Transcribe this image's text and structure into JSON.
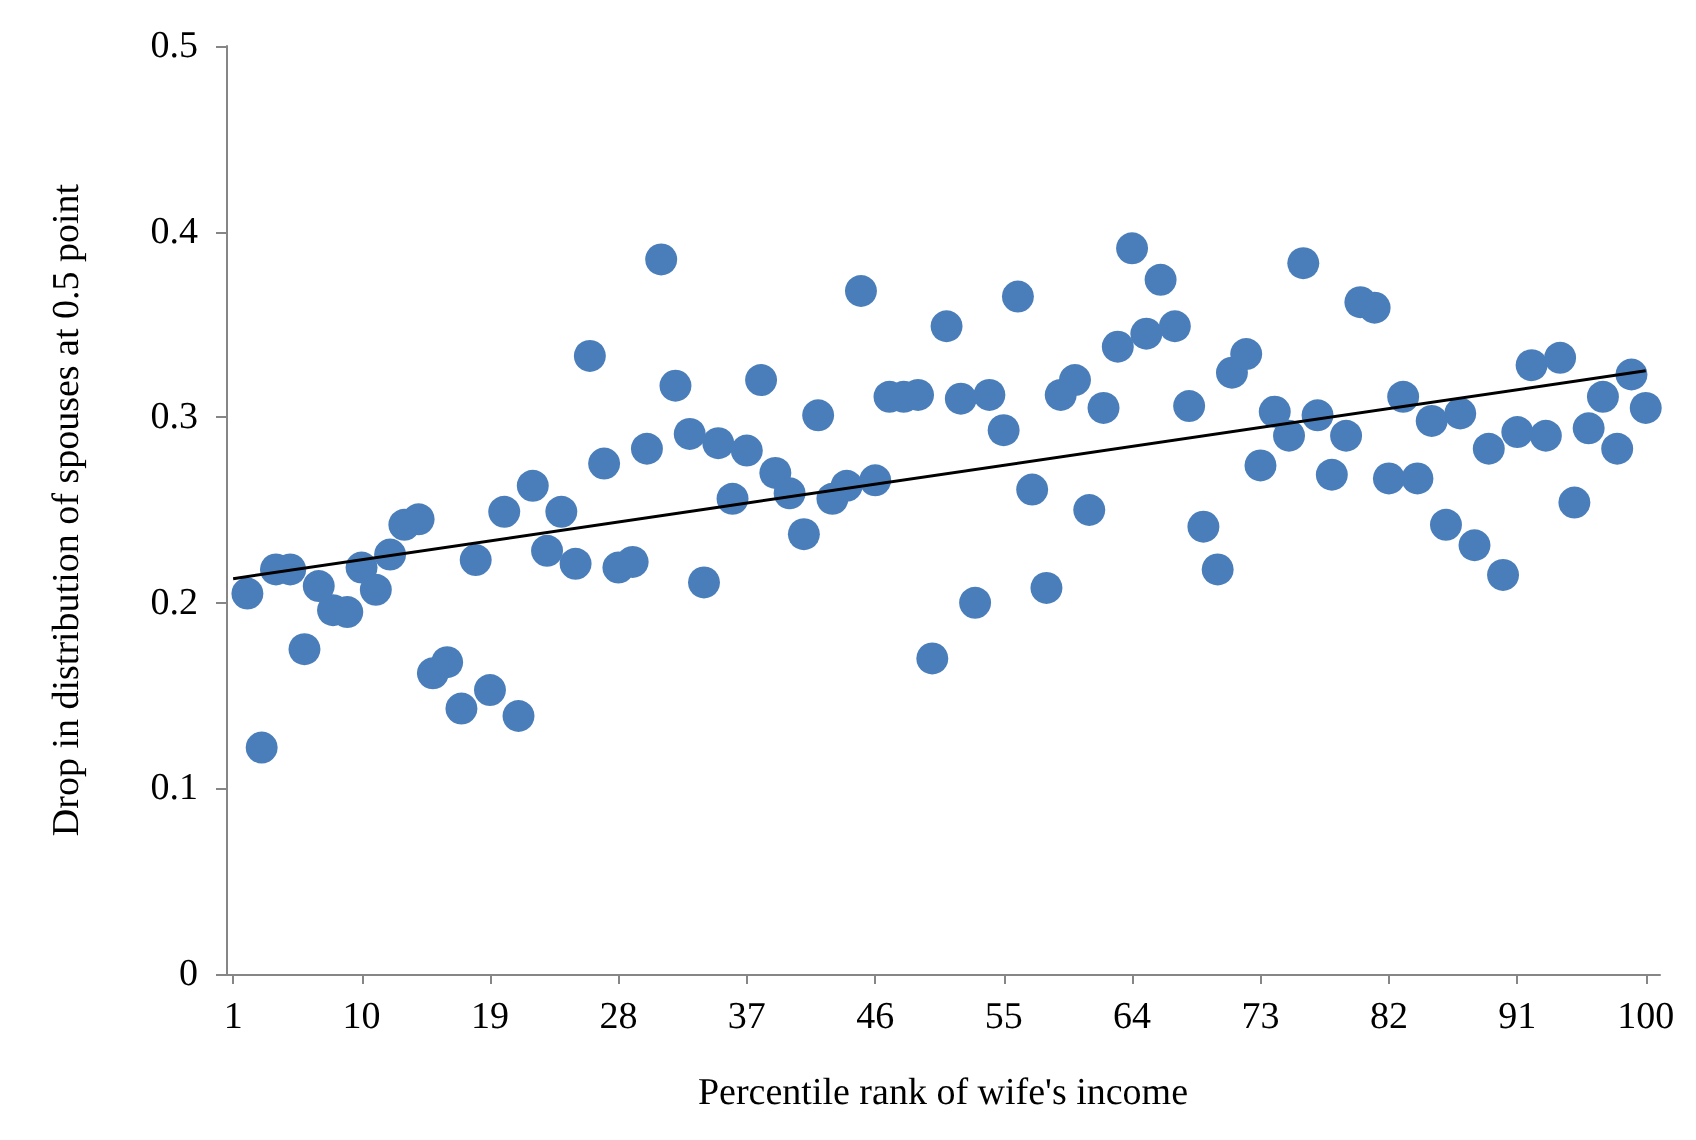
{
  "chart_data": {
    "type": "scatter",
    "xlabel": "Percentile rank of wife's income",
    "ylabel": "Drop in distribution of spouses at 0.5 point",
    "xlim": [
      0.5,
      101
    ],
    "xticks": [
      1,
      10,
      19,
      28,
      37,
      46,
      55,
      64,
      73,
      82,
      91,
      100
    ],
    "ylim": [
      0,
      0.5
    ],
    "yticks": [
      0,
      0.1,
      0.2,
      0.3,
      0.4,
      0.5
    ],
    "marker": "circle",
    "series": [
      {
        "color": "#4a7ebb",
        "x": [
          2,
          3,
          4,
          5,
          6,
          7,
          8,
          9,
          10,
          11,
          12,
          13,
          14,
          15,
          16,
          17,
          18,
          19,
          20,
          21,
          22,
          23,
          24,
          25,
          26,
          27,
          28,
          29,
          30,
          31,
          32,
          33,
          34,
          35,
          36,
          37,
          38,
          39,
          40,
          41,
          42,
          43,
          44,
          45,
          46,
          47,
          48,
          49,
          50,
          51,
          52,
          53,
          54,
          55,
          56,
          57,
          58,
          59,
          60,
          61,
          62,
          63,
          64,
          65,
          66,
          67,
          68,
          69,
          70,
          71,
          72,
          73,
          74,
          75,
          76,
          77,
          78,
          79,
          80,
          81,
          82,
          83,
          84,
          85,
          86,
          87,
          88,
          89,
          90,
          91,
          92,
          93,
          94,
          95,
          96,
          97,
          98,
          99,
          100
        ],
        "values": [
          0.205,
          0.122,
          0.218,
          0.218,
          0.175,
          0.209,
          0.196,
          0.195,
          0.219,
          0.207,
          0.226,
          0.242,
          0.245,
          0.162,
          0.168,
          0.143,
          0.223,
          0.153,
          0.249,
          0.139,
          0.263,
          0.228,
          0.249,
          0.221,
          0.333,
          0.275,
          0.219,
          0.222,
          0.283,
          0.385,
          0.317,
          0.291,
          0.211,
          0.286,
          0.256,
          0.282,
          0.32,
          0.27,
          0.259,
          0.237,
          0.301,
          0.256,
          0.263,
          0.368,
          0.266,
          0.311,
          0.311,
          0.312,
          0.17,
          0.349,
          0.31,
          0.2,
          0.312,
          0.293,
          0.365,
          0.261,
          0.208,
          0.312,
          0.32,
          0.25,
          0.305,
          0.338,
          0.391,
          0.345,
          0.374,
          0.349,
          0.306,
          0.241,
          0.218,
          0.324,
          0.334,
          0.274,
          0.303,
          0.29,
          0.383,
          0.301,
          0.269,
          0.29,
          0.362,
          0.359,
          0.267,
          0.311,
          0.267,
          0.298,
          0.242,
          0.302,
          0.231,
          0.283,
          0.215,
          0.292,
          0.328,
          0.29,
          0.332,
          0.254,
          0.294,
          0.311,
          0.283,
          0.323,
          0.305
        ]
      },
      {
        "type": "line",
        "color": "#000000",
        "marker": "none",
        "line_style": "solid",
        "x": [
          1,
          100
        ],
        "values": [
          0.213,
          0.325
        ]
      }
    ]
  }
}
